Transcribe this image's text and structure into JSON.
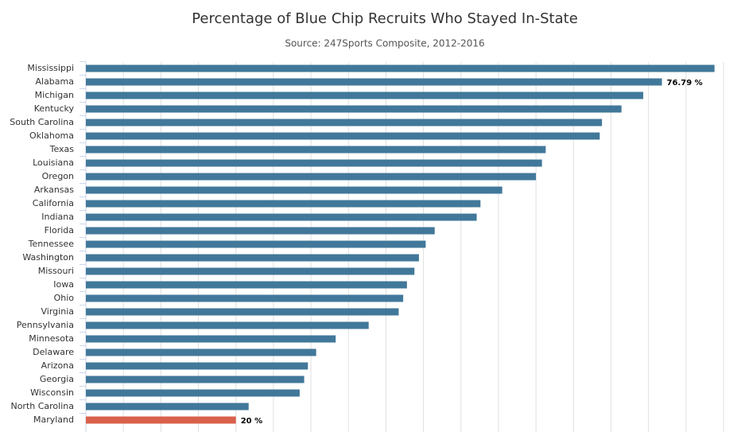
{
  "chart_data": {
    "type": "hbar",
    "title": "Percentage of Blue Chip Recruits Who Stayed In-State",
    "subtitle": "Source: 247Sports Composite, 2012-2016",
    "categories": [
      "Mississippi",
      "Alabama",
      "Michigan",
      "Kentucky",
      "South Carolina",
      "Oklahoma",
      "Texas",
      "Louisiana",
      "Oregon",
      "Arkansas",
      "California",
      "Indiana",
      "Florida",
      "Tennessee",
      "Washington",
      "Missouri",
      "Iowa",
      "Ohio",
      "Virginia",
      "Pennsylvania",
      "Minnesota",
      "Delaware",
      "Arizona",
      "Georgia",
      "Wisconsin",
      "North Carolina",
      "Maryland"
    ],
    "values": [
      83.8,
      76.79,
      74.3,
      71.4,
      68.8,
      68.5,
      61.3,
      60.8,
      60.0,
      55.5,
      52.6,
      52.1,
      46.5,
      45.3,
      44.4,
      43.8,
      42.8,
      42.3,
      41.7,
      37.7,
      33.3,
      30.7,
      29.6,
      29.1,
      28.5,
      21.7,
      20
    ],
    "value_labels": [
      null,
      "76.79 %",
      null,
      null,
      null,
      null,
      null,
      null,
      null,
      null,
      null,
      null,
      null,
      null,
      null,
      null,
      null,
      null,
      null,
      null,
      null,
      null,
      null,
      null,
      null,
      null,
      "20 %"
    ],
    "colors": [
      "#41789a",
      "#41789a",
      "#41789a",
      "#41789a",
      "#41789a",
      "#41789a",
      "#41789a",
      "#41789a",
      "#41789a",
      "#41789a",
      "#41789a",
      "#41789a",
      "#41789a",
      "#41789a",
      "#41789a",
      "#41789a",
      "#41789a",
      "#41789a",
      "#41789a",
      "#41789a",
      "#41789a",
      "#41789a",
      "#41789a",
      "#41789a",
      "#41789a",
      "#41789a",
      "#d9614c"
    ],
    "xlim": [
      0,
      85
    ],
    "xticks": [
      0,
      5,
      10,
      15,
      20,
      25,
      30,
      35,
      40,
      45,
      50,
      55,
      60,
      65,
      70,
      75,
      80,
      85
    ],
    "grid": true
  }
}
